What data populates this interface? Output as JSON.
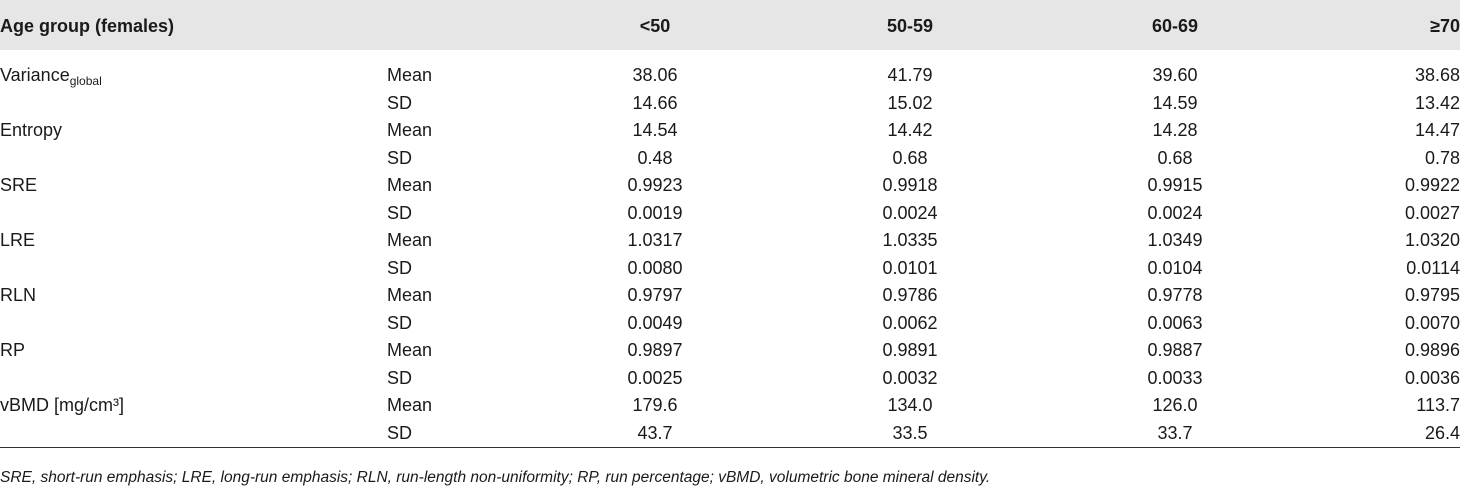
{
  "header": {
    "label": "Age group (females)",
    "columns": [
      "<50",
      "50-59",
      "60-69",
      "≥70"
    ]
  },
  "groups": [
    {
      "label": "Variance",
      "label_sub": "global",
      "rows": [
        {
          "stat": "Mean",
          "values": [
            "38.06",
            "41.79",
            "39.60",
            "38.68"
          ]
        },
        {
          "stat": "SD",
          "values": [
            "14.66",
            "15.02",
            "14.59",
            "13.42"
          ]
        }
      ]
    },
    {
      "label": "Entropy",
      "rows": [
        {
          "stat": "Mean",
          "values": [
            "14.54",
            "14.42",
            "14.28",
            "14.47"
          ]
        },
        {
          "stat": "SD",
          "values": [
            "0.48",
            "0.68",
            "0.68",
            "0.78"
          ]
        }
      ]
    },
    {
      "label": "SRE",
      "rows": [
        {
          "stat": "Mean",
          "values": [
            "0.9923",
            "0.9918",
            "0.9915",
            "0.9922"
          ]
        },
        {
          "stat": "SD",
          "values": [
            "0.0019",
            "0.0024",
            "0.0024",
            "0.0027"
          ]
        }
      ]
    },
    {
      "label": "LRE",
      "rows": [
        {
          "stat": "Mean",
          "values": [
            "1.0317",
            "1.0335",
            "1.0349",
            "1.0320"
          ]
        },
        {
          "stat": "SD",
          "values": [
            "0.0080",
            "0.0101",
            "0.0104",
            "0.0114"
          ]
        }
      ]
    },
    {
      "label": "RLN",
      "rows": [
        {
          "stat": "Mean",
          "values": [
            "0.9797",
            "0.9786",
            "0.9778",
            "0.9795"
          ]
        },
        {
          "stat": "SD",
          "values": [
            "0.0049",
            "0.0062",
            "0.0063",
            "0.0070"
          ]
        }
      ]
    },
    {
      "label": "RP",
      "rows": [
        {
          "stat": "Mean",
          "values": [
            "0.9897",
            "0.9891",
            "0.9887",
            "0.9896"
          ]
        },
        {
          "stat": "SD",
          "values": [
            "0.0025",
            "0.0032",
            "0.0033",
            "0.0036"
          ]
        }
      ]
    },
    {
      "label": "vBMD [mg/cm³]",
      "rows": [
        {
          "stat": "Mean",
          "values": [
            "179.6",
            "134.0",
            "126.0",
            "113.7"
          ]
        },
        {
          "stat": "SD",
          "values": [
            "43.7",
            "33.5",
            "33.7",
            "26.4"
          ]
        }
      ]
    }
  ],
  "footnote": "SRE, short-run emphasis; LRE, long-run emphasis; RLN, run-length non-uniformity; RP, run percentage; vBMD, volumetric bone mineral density."
}
